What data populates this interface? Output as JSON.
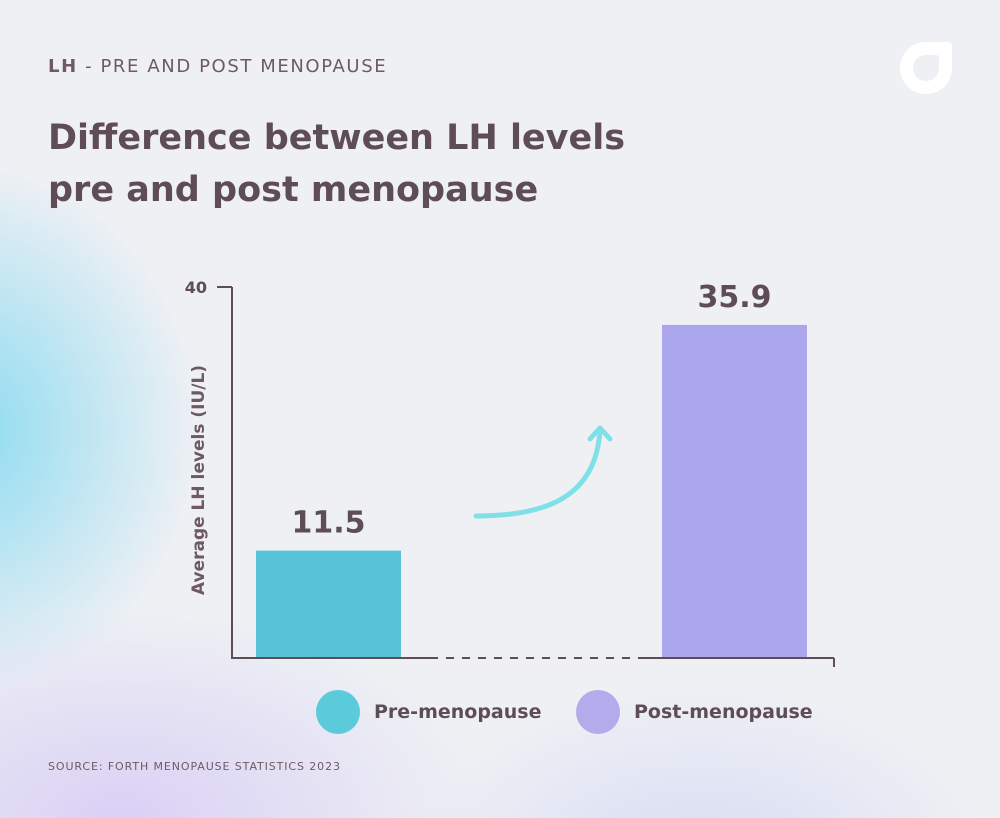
{
  "header": {
    "eyebrow_strong": "LH",
    "eyebrow_rest": "- PRE AND POST MENOPAUSE",
    "title": "Difference between LH levels pre and post menopause"
  },
  "logo_icon": "brand-logo-icon",
  "chart_data": {
    "type": "bar",
    "categories": [
      "Pre-menopause",
      "Post-menopause"
    ],
    "values": [
      11.5,
      35.9
    ],
    "value_labels": [
      "11.5",
      "35.9"
    ],
    "colors": [
      "#56c4d6",
      "#aca6ec"
    ],
    "title": "Difference between LH levels pre and post menopause",
    "xlabel": "",
    "ylabel": "Average LH levels (IU/L)",
    "ylim": [
      0,
      40
    ],
    "yticks": [
      "40"
    ],
    "grid": false,
    "legend": "bottom",
    "annotation": "upward arrow from pre-menopause to post-menopause",
    "accent_arrow_color": "#7fe0e8"
  },
  "legend": [
    {
      "label": "Pre-menopause",
      "color": "#5bcbdc"
    },
    {
      "label": "Post-menopause",
      "color": "#b3acec"
    }
  ],
  "footer": {
    "source": "SOURCE: FORTH MENOPAUSE STATISTICS 2023"
  }
}
